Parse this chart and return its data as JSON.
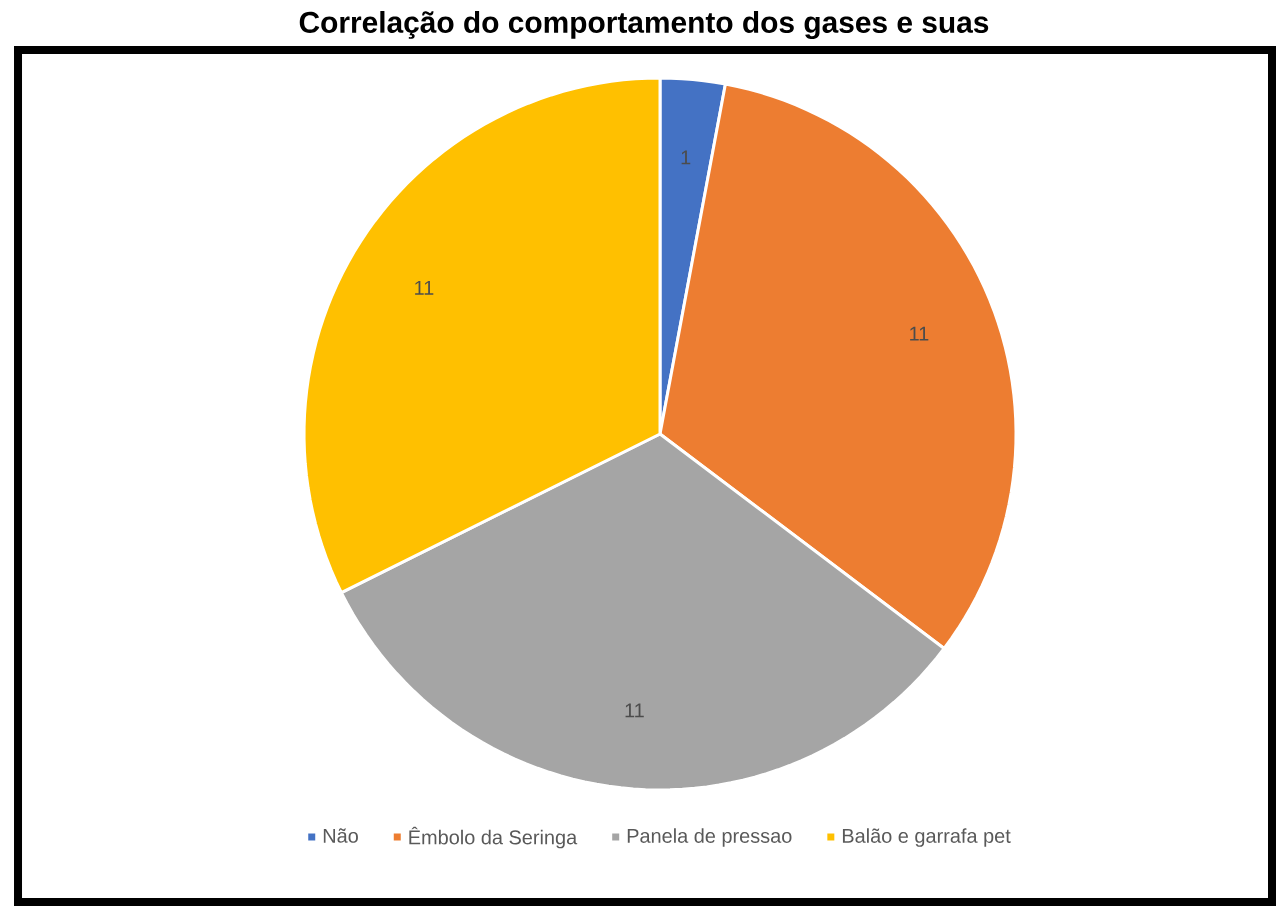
{
  "chart_data": {
    "type": "pie",
    "title": "Correlação do comportamento dos gases e suas",
    "categories": [
      "Não",
      "Êmbolo da Seringa",
      "Panela de pressao",
      "Balão e garrafa pet"
    ],
    "values": [
      1,
      11,
      11,
      11
    ],
    "colors": [
      "#4472c4",
      "#ed7d31",
      "#a5a5a5",
      "#ffc000"
    ],
    "data_labels": true,
    "legend": "bottom"
  }
}
